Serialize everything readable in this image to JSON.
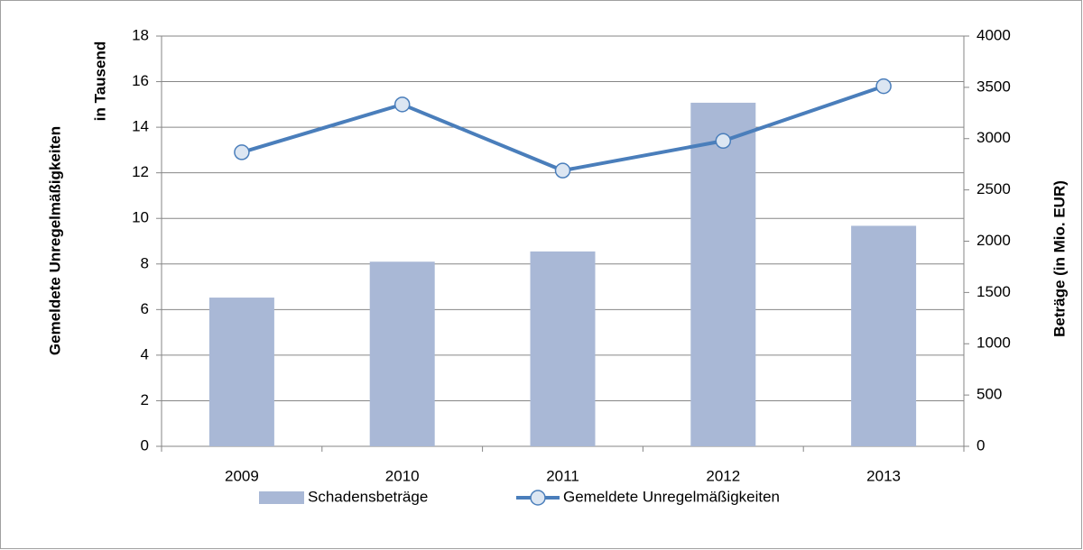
{
  "chart_data": {
    "type": "combo",
    "ylabel": [
      "Gemeldete Unregelmäßigkeiten",
      "in Tausend"
    ],
    "y2label": "Beträge (in Mio. EUR)",
    "categories": [
      "2009",
      "2010",
      "2011",
      "2012",
      "2013"
    ],
    "series": [
      {
        "name": "Schadensbeträge",
        "type": "bar",
        "axis": "y2",
        "color": "#a9b8d6",
        "values": [
          1450,
          1800,
          1900,
          3350,
          2150
        ]
      },
      {
        "name": "Gemeldete Unregelmäßigkeiten",
        "type": "line",
        "axis": "y",
        "color": "#4a7ebb",
        "marker_fill": "#dce6f2",
        "values": [
          12.9,
          15.0,
          12.1,
          13.4,
          15.8
        ]
      }
    ],
    "ylim": [
      0,
      18
    ],
    "yticks": [
      0,
      2,
      4,
      6,
      8,
      10,
      12,
      14,
      16,
      18
    ],
    "y2lim": [
      0,
      4000
    ],
    "y2ticks": [
      0,
      500,
      1000,
      1500,
      2000,
      2500,
      3000,
      3500,
      4000
    ],
    "grid": true,
    "legend": "bottom"
  }
}
